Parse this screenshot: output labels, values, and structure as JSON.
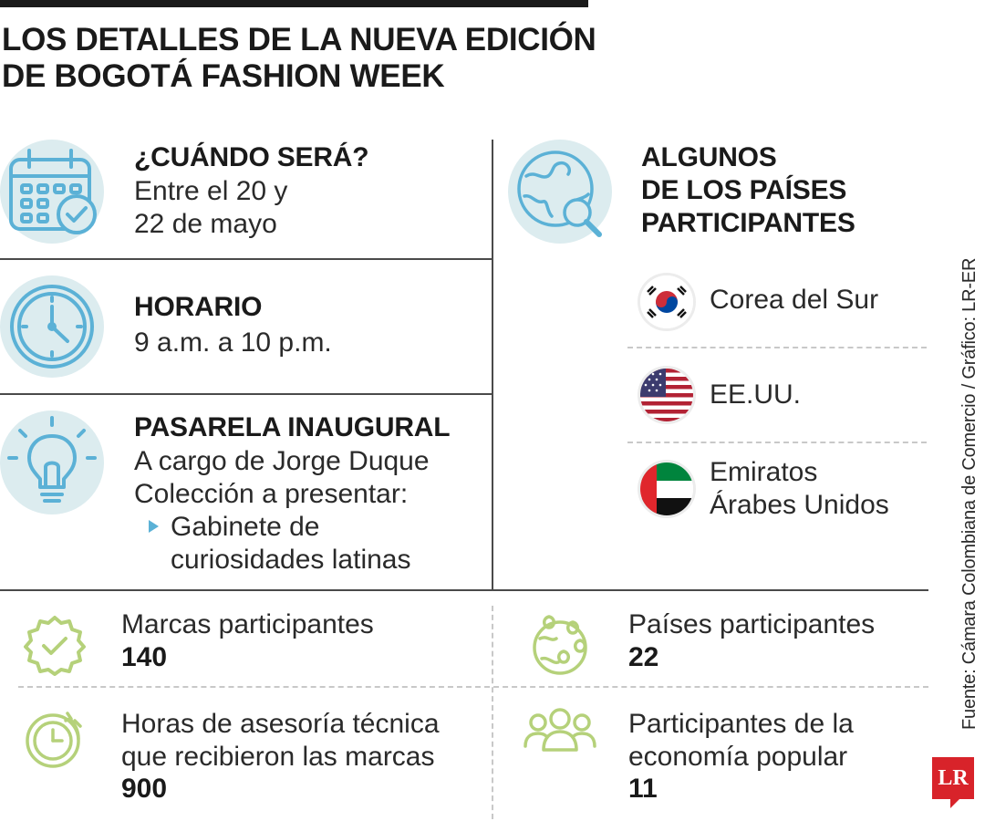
{
  "title": {
    "line1": "LOS DETALLES DE LA NUEVA EDICIÓN",
    "line2": "DE BOGOTÁ FASHION WEEK"
  },
  "when": {
    "heading": "¿CUÁNDO SERÁ?",
    "line1": "Entre el 20 y",
    "line2": "22 de mayo",
    "icon": "calendar-check-icon"
  },
  "schedule": {
    "heading": "HORARIO",
    "line1": "9 a.m. a 10 p.m.",
    "icon": "clock-icon"
  },
  "opening": {
    "heading": "PASARELA INAUGURAL",
    "line1": "A cargo de Jorge Duque",
    "line2": "Colección a presentar:",
    "bullet_line1": "Gabinete de",
    "bullet_line2": "curiosidades latinas",
    "icon": "lightbulb-icon"
  },
  "countries": {
    "heading_line1": "ALGUNOS",
    "heading_line2": "DE LOS PAÍSES",
    "heading_line3": "PARTICIPANTES",
    "icon": "globe-search-icon",
    "items": [
      {
        "name": "Corea del Sur",
        "flag": "south-korea-flag-icon"
      },
      {
        "name": "EE.UU.",
        "flag": "usa-flag-icon"
      },
      {
        "name_line1": "Emiratos",
        "name_line2": "Árabes Unidos",
        "flag": "uae-flag-icon"
      }
    ]
  },
  "stats": {
    "brands": {
      "label": "Marcas participantes",
      "value": "140",
      "icon": "badge-check-icon"
    },
    "countries": {
      "label": "Países participantes",
      "value": "22",
      "icon": "globe-pins-icon"
    },
    "hours": {
      "label_line1": "Horas de asesoría técnica",
      "label_line2": "que recibieron las marcas",
      "value": "900",
      "icon": "stopwatch-icon"
    },
    "popular": {
      "label_line1": "Participantes de la",
      "label_line2": "economía popular",
      "value": "11",
      "icon": "group-people-icon"
    }
  },
  "source": "Fuente: Cámara Colombiana de Comercio / Gráfico: LR-ER",
  "logo": "LR",
  "colors": {
    "icon_blue": "#5bb1d6",
    "icon_circle": "#dcecef",
    "icon_green": "#b5d17a",
    "logo_red": "#d8232a",
    "text": "#1a1a1a"
  }
}
